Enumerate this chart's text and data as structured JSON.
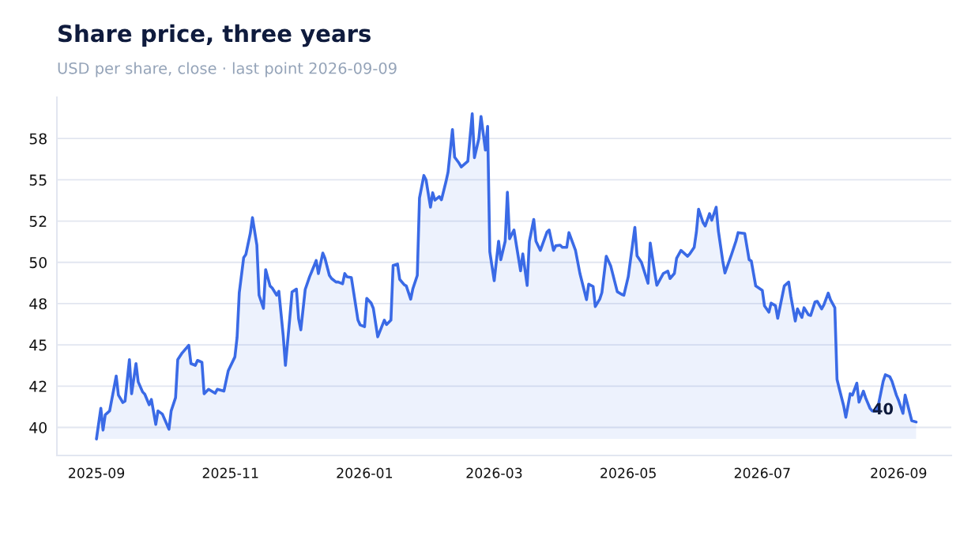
{
  "chart_data": {
    "type": "area",
    "title": "Share price, three years",
    "subtitle": "USD per share, close · last point 2026-09-09",
    "x": [
      "2025-09-01",
      "2025-09-03",
      "2025-09-04",
      "2025-09-05",
      "2025-09-07",
      "2025-09-10",
      "2025-09-11",
      "2025-09-13",
      "2025-09-14",
      "2025-09-16",
      "2025-09-17",
      "2025-09-19",
      "2025-09-20",
      "2025-09-22",
      "2025-09-23",
      "2025-09-25",
      "2025-09-26",
      "2025-09-28",
      "2025-09-29",
      "2025-10-01",
      "2025-10-04",
      "2025-10-05",
      "2025-10-07",
      "2025-10-08",
      "2025-10-10",
      "2025-10-13",
      "2025-10-14",
      "2025-10-16",
      "2025-10-17",
      "2025-10-19",
      "2025-10-20",
      "2025-10-22",
      "2025-10-25",
      "2025-10-26",
      "2025-10-29",
      "2025-10-31",
      "2025-11-03",
      "2025-11-04",
      "2025-11-05",
      "2025-11-07",
      "2025-11-08",
      "2025-11-10",
      "2025-11-11",
      "2025-11-13",
      "2025-11-14",
      "2025-11-16",
      "2025-11-17",
      "2025-11-19",
      "2025-11-20",
      "2025-11-22",
      "2025-11-23",
      "2025-11-25",
      "2025-11-26",
      "2025-11-28",
      "2025-11-29",
      "2025-12-01",
      "2025-12-02",
      "2025-12-03",
      "2025-12-05",
      "2025-12-07",
      "2025-12-08",
      "2025-12-10",
      "2025-12-11",
      "2025-12-13",
      "2025-12-14",
      "2025-12-16",
      "2025-12-17",
      "2025-12-19",
      "2025-12-20",
      "2025-12-22",
      "2025-12-23",
      "2025-12-24",
      "2025-12-26",
      "2025-12-29",
      "2025-12-30",
      "2026-01-01",
      "2026-01-02",
      "2026-01-04",
      "2026-01-05",
      "2026-01-07",
      "2026-01-10",
      "2026-01-11",
      "2026-01-13",
      "2026-01-14",
      "2026-01-16",
      "2026-01-17",
      "2026-01-19",
      "2026-01-20",
      "2026-01-22",
      "2026-01-23",
      "2026-01-25",
      "2026-01-26",
      "2026-01-28",
      "2026-01-29",
      "2026-01-31",
      "2026-02-01",
      "2026-02-02",
      "2026-02-04",
      "2026-02-05",
      "2026-02-07",
      "2026-02-08",
      "2026-02-10",
      "2026-02-11",
      "2026-02-13",
      "2026-02-14",
      "2026-02-17",
      "2026-02-19",
      "2026-02-20",
      "2026-02-22",
      "2026-02-23",
      "2026-02-25",
      "2026-02-26",
      "2026-02-27",
      "2026-03-01",
      "2026-03-03",
      "2026-03-04",
      "2026-03-06",
      "2026-03-07",
      "2026-03-08",
      "2026-03-10",
      "2026-03-11",
      "2026-03-13",
      "2026-03-14",
      "2026-03-16",
      "2026-03-17",
      "2026-03-19",
      "2026-03-20",
      "2026-03-22",
      "2026-03-25",
      "2026-03-26",
      "2026-03-28",
      "2026-03-29",
      "2026-03-31",
      "2026-04-01",
      "2026-04-03",
      "2026-04-04",
      "2026-04-07",
      "2026-04-09",
      "2026-04-12",
      "2026-04-13",
      "2026-04-15",
      "2026-04-16",
      "2026-04-18",
      "2026-04-19",
      "2026-04-21",
      "2026-04-22",
      "2026-04-23",
      "2026-04-26",
      "2026-04-28",
      "2026-04-29",
      "2026-05-01",
      "2026-05-04",
      "2026-05-05",
      "2026-05-07",
      "2026-05-10",
      "2026-05-11",
      "2026-05-13",
      "2026-05-14",
      "2026-05-17",
      "2026-05-19",
      "2026-05-20",
      "2026-05-22",
      "2026-05-23",
      "2026-05-25",
      "2026-05-28",
      "2026-05-29",
      "2026-05-31",
      "2026-06-01",
      "2026-06-02",
      "2026-06-04",
      "2026-06-05",
      "2026-06-07",
      "2026-06-08",
      "2026-06-10",
      "2026-06-11",
      "2026-06-13",
      "2026-06-14",
      "2026-06-17",
      "2026-06-19",
      "2026-06-20",
      "2026-06-23",
      "2026-06-25",
      "2026-06-26",
      "2026-06-28",
      "2026-07-01",
      "2026-07-02",
      "2026-07-04",
      "2026-07-05",
      "2026-07-07",
      "2026-07-08",
      "2026-07-11",
      "2026-07-13",
      "2026-07-14",
      "2026-07-16",
      "2026-07-17",
      "2026-07-19",
      "2026-07-20",
      "2026-07-22",
      "2026-07-23",
      "2026-07-25",
      "2026-07-26",
      "2026-07-28",
      "2026-07-29",
      "2026-07-31",
      "2026-08-01",
      "2026-08-03",
      "2026-08-04",
      "2026-08-05",
      "2026-08-07",
      "2026-08-08",
      "2026-08-10",
      "2026-08-11",
      "2026-08-13",
      "2026-08-14",
      "2026-08-16",
      "2026-08-17",
      "2026-08-19",
      "2026-08-20",
      "2026-08-22",
      "2026-08-23",
      "2026-08-25",
      "2026-08-26",
      "2026-08-28",
      "2026-08-29",
      "2026-08-31",
      "2026-09-01",
      "2026-09-03",
      "2026-09-04",
      "2026-09-07",
      "2026-09-09"
    ],
    "series": [
      {
        "color": "#3a6ae6",
        "values": [
          39.3,
          41.16,
          39.84,
          40.76,
          41.0,
          43.11,
          41.96,
          41.51,
          41.59,
          44.11,
          42.04,
          43.87,
          42.76,
          42.15,
          42.01,
          41.37,
          41.69,
          40.18,
          41.0,
          40.81,
          39.89,
          41.0,
          41.8,
          44.11,
          44.51,
          44.98,
          43.87,
          43.76,
          44.06,
          43.95,
          42.04,
          42.31,
          42.07,
          42.31,
          42.2,
          43.44,
          44.27,
          45.46,
          48.17,
          50.29,
          50.48,
          51.75,
          52.71,
          51.04,
          48.01,
          47.21,
          49.56,
          48.57,
          48.44,
          48.01,
          48.25,
          45.54,
          43.76,
          46.66,
          48.2,
          48.38,
          46.58,
          45.91,
          48.36,
          49.13,
          49.45,
          50.11,
          49.32,
          50.56,
          50.24,
          49.21,
          49.02,
          48.81,
          48.81,
          48.7,
          49.32,
          49.13,
          49.08,
          46.5,
          46.21,
          46.1,
          47.82,
          47.53,
          47.21,
          45.49,
          46.5,
          46.23,
          46.5,
          49.81,
          49.9,
          48.97,
          48.65,
          48.57,
          47.77,
          48.41,
          49.21,
          53.9,
          55.26,
          54.99,
          53.34,
          54.22,
          53.77,
          53.98,
          53.79,
          54.86,
          55.47,
          58.05,
          56.37,
          56.01,
          55.78,
          56.13,
          59.0,
          56.34,
          57.49,
          58.84,
          56.8,
          58.24,
          50.64,
          48.89,
          51.28,
          50.16,
          51.28,
          54.25,
          51.43,
          51.96,
          51.12,
          49.49,
          50.51,
          48.6,
          51.28,
          52.6,
          51.28,
          50.72,
          51.83,
          51.96,
          50.72,
          51.0,
          51.04,
          50.91,
          50.91,
          51.8,
          50.72,
          49.33,
          47.74,
          48.68,
          48.54,
          47.32,
          47.77,
          48.17,
          50.37,
          50.08,
          49.79,
          48.22,
          48.06,
          48.01,
          49.13,
          52.12,
          50.4,
          50.0,
          48.73,
          51.17,
          49.41,
          48.61,
          49.33,
          49.47,
          49.02,
          49.33,
          50.24,
          50.72,
          50.37,
          50.51,
          50.91,
          51.83,
          53.22,
          52.42,
          52.2,
          52.95,
          52.55,
          53.34,
          51.91,
          50.08,
          49.36,
          50.48,
          51.28,
          51.8,
          51.75,
          50.16,
          50.08,
          48.57,
          48.3,
          47.37,
          46.98,
          47.53,
          47.37,
          46.61,
          48.57,
          48.81,
          47.93,
          46.45,
          47.18,
          46.66,
          47.25,
          46.82,
          46.78,
          47.61,
          47.64,
          47.18,
          47.42,
          48.14,
          47.74,
          47.25,
          42.91,
          42.36,
          41.32,
          40.61,
          42.04,
          41.96,
          42.68,
          41.53,
          42.2,
          41.8,
          41.16,
          41.0,
          41.0,
          41.48,
          42.8,
          43.19,
          43.07,
          42.8,
          41.96,
          41.64,
          40.85,
          41.96,
          40.41,
          40.33
        ]
      }
    ],
    "annotations": [
      {
        "text": "40",
        "x": "2026-09-09",
        "y": 40.33
      }
    ],
    "xlim": [
      "2025-08-14",
      "2026-09-25"
    ],
    "xticks": [
      "2025-09",
      "2025-11",
      "2026-01",
      "2026-03",
      "2026-05",
      "2026-07",
      "2026-09"
    ],
    "ylim": [
      38.3,
      60
    ],
    "yticks": [
      40,
      {
        "value": 42.5,
        "label": "42"
      },
      45,
      {
        "value": 47.5,
        "label": "48"
      },
      50,
      {
        "value": 52.5,
        "label": "52"
      },
      55,
      {
        "value": 57.5,
        "label": "58"
      }
    ],
    "grid": "y",
    "line_style": "solid"
  }
}
